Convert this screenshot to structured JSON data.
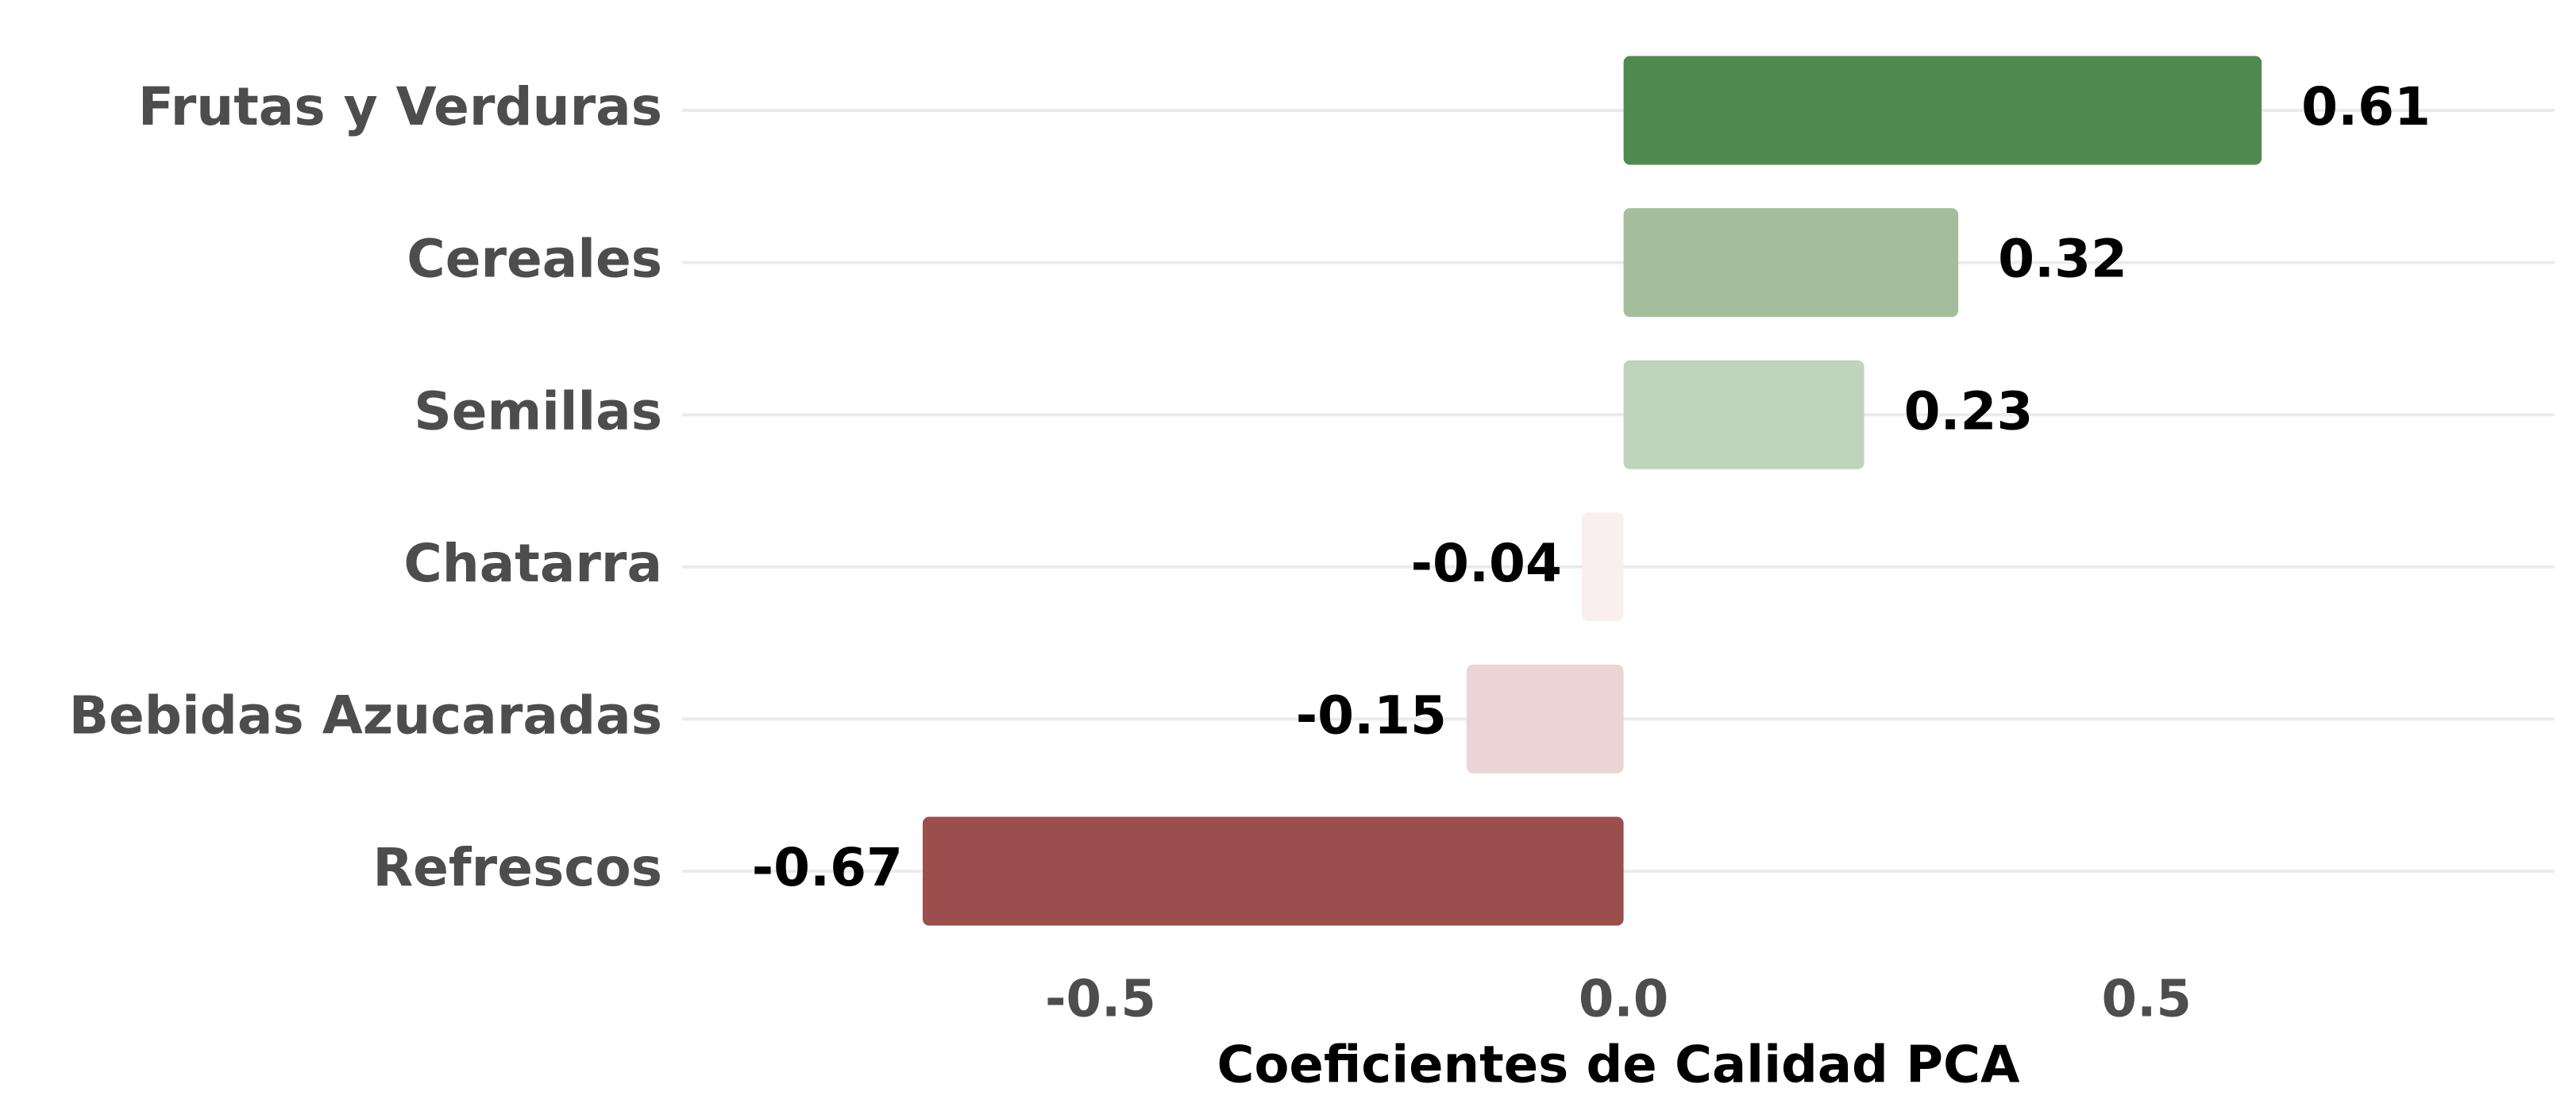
{
  "chart_data": {
    "type": "bar",
    "orientation": "horizontal",
    "x_label": "Coeficientes de Calidad PCA",
    "categories": [
      "Frutas y Verduras",
      "Cereales",
      "Semillas",
      "Chatarra",
      "Bebidas Azucaradas",
      "Refrescos"
    ],
    "values": [
      0.61,
      0.32,
      0.23,
      -0.04,
      -0.15,
      -0.67
    ],
    "colors": [
      "#518a51",
      "#a3be9d",
      "#bfd3bd",
      "#f9efee",
      "#edd4d4",
      "#9a4f4e"
    ],
    "xlim": [
      -0.9,
      0.89
    ],
    "xticks": [
      -0.5,
      {
        "value": 0,
        "label": "0.0"
      },
      0.5
    ],
    "grid": true
  }
}
